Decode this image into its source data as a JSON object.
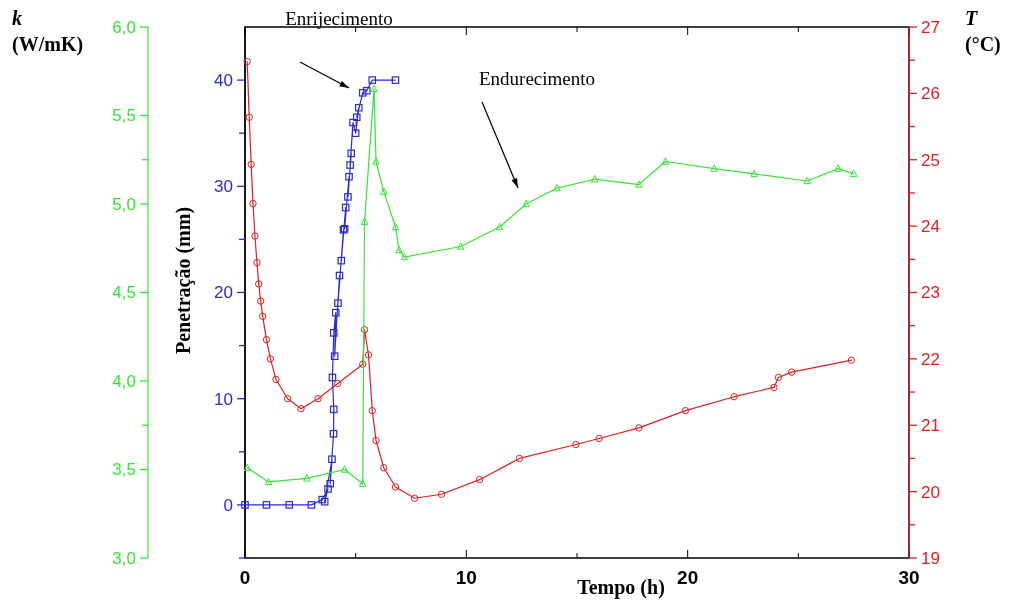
{
  "chart_data": {
    "type": "line",
    "xlabel": "Tempo (h)",
    "ylabel": "Penetração (mm)",
    "y2label": "T (°C)",
    "y3label": "k (W/mK)",
    "xlim": [
      0,
      30
    ],
    "xticks": [
      0,
      {
        "value": 5,
        "label": null
      },
      10,
      {
        "value": 15,
        "label": null
      },
      20,
      {
        "value": 25,
        "label": null
      },
      30
    ],
    "ylim": [
      -5,
      45
    ],
    "yticks": [
      {
        "value": -5,
        "label": null
      },
      0,
      {
        "value": 5,
        "label": null
      },
      10,
      {
        "value": 15,
        "label": null
      },
      20,
      {
        "value": 25,
        "label": null
      },
      30,
      {
        "value": 35,
        "label": null
      },
      40
    ],
    "y2lim": [
      19,
      27
    ],
    "y2ticks": [
      19,
      {
        "value": 19.5,
        "label": null
      },
      20,
      {
        "value": 20.5,
        "label": null
      },
      21,
      {
        "value": 21.5,
        "label": null
      },
      22,
      {
        "value": 22.5,
        "label": null
      },
      23,
      {
        "value": 23.5,
        "label": null
      },
      24,
      {
        "value": 24.5,
        "label": null
      },
      25,
      {
        "value": 25.5,
        "label": null
      },
      26,
      {
        "value": 26.5,
        "label": null
      },
      27
    ],
    "y3lim": [
      3,
      6
    ],
    "y3ticks": [
      {
        "value": 3,
        "label": "3,0"
      },
      {
        "value": 3.5,
        "label": "3,5"
      },
      {
        "value": 3.75,
        "label": null
      },
      {
        "value": 4,
        "label": "4,0"
      },
      {
        "value": 4.5,
        "label": "4,5"
      },
      {
        "value": 5,
        "label": "5,0"
      },
      {
        "value": 5.25,
        "label": null
      },
      {
        "value": 5.5,
        "label": "5,5"
      },
      {
        "value": 6,
        "label": "6,0"
      }
    ],
    "grid": false,
    "series": [
      {
        "color": "#e02020",
        "marker": "circle",
        "axis": "y2",
        "x": [
          0.1,
          0.19,
          0.28,
          0.36,
          0.45,
          0.54,
          0.62,
          0.71,
          0.8,
          0.97,
          1.15,
          1.4,
          1.93,
          2.53,
          3.3,
          4.19,
          5.32,
          5.4,
          5.58,
          5.75,
          5.92,
          6.27,
          6.8,
          7.66,
          8.88,
          10.6,
          12.4,
          14.95,
          16.0,
          17.8,
          19.9,
          22.1,
          23.9,
          24.1,
          24.7,
          27.4
        ],
        "values": [
          26.48,
          25.64,
          24.93,
          24.34,
          23.85,
          23.45,
          23.13,
          22.87,
          22.64,
          22.29,
          22.0,
          21.69,
          21.4,
          21.25,
          21.4,
          21.63,
          21.92,
          22.44,
          22.06,
          21.22,
          20.77,
          20.36,
          20.07,
          19.9,
          19.96,
          20.18,
          20.5,
          20.71,
          20.8,
          20.96,
          21.22,
          21.43,
          21.57,
          21.72,
          21.8,
          21.98
        ]
      },
      {
        "color": "#2b2bd0",
        "marker": "square",
        "axis": "y",
        "x": [
          0,
          0.97,
          2.0,
          3.0,
          3.49,
          3.75,
          3.6,
          3.93,
          3.85,
          4.0,
          4.01,
          3.95,
          4.01,
          4.1,
          4.05,
          4.27,
          4.2,
          4.45,
          4.35,
          4.55,
          4.5,
          4.7,
          4.65,
          4.8,
          4.75,
          4.88,
          5.0,
          5.14,
          5.05,
          5.32,
          5.5,
          5.75,
          6.8
        ],
        "values": [
          0,
          0,
          0,
          0,
          0.5,
          1.5,
          0.3,
          4.3,
          2,
          6.7,
          9.0,
          12,
          16.2,
          18.1,
          14,
          21.6,
          19,
          25.9,
          23,
          28,
          26,
          30.9,
          29,
          33.1,
          32,
          36,
          35,
          37.4,
          36.5,
          38.8,
          39,
          40,
          40
        ]
      },
      {
        "color": "#33e633",
        "marker": "triangle",
        "axis": "y3",
        "x": [
          0.1,
          1.06,
          2.8,
          4.5,
          5.32,
          5.4,
          5.83,
          5.92,
          6.27,
          6.8,
          6.96,
          7.2,
          9.75,
          11.5,
          12.7,
          14.1,
          15.8,
          17.8,
          19.0,
          21.2,
          23.0,
          25.4,
          26.8,
          27.5
        ],
        "values": [
          3.51,
          3.43,
          3.45,
          3.5,
          3.42,
          4.9,
          5.65,
          5.24,
          5.07,
          4.87,
          4.74,
          4.7,
          4.76,
          4.87,
          5.0,
          5.09,
          5.14,
          5.11,
          5.24,
          5.2,
          5.17,
          5.13,
          5.2,
          5.17
        ]
      }
    ],
    "annotations": [
      "Enrijecimento",
      "Endurecimento"
    ]
  }
}
